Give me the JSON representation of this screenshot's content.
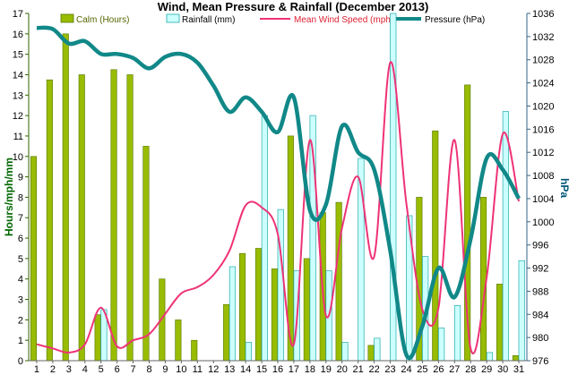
{
  "chart_data": {
    "type": "bar",
    "title": "Wind, Mean Pressure & Rainfall (December 2013)",
    "xlabel": "",
    "ylabel": "Hours/mph/mm",
    "y2label": "hPa",
    "ylim": [
      0,
      17
    ],
    "y2lim": [
      976,
      1036
    ],
    "yticks": [
      "0",
      "1",
      "2",
      "3",
      "4",
      "5",
      "6",
      "7",
      "8",
      "9",
      "10",
      "11",
      "12",
      "13",
      "14",
      "15",
      "16",
      "17"
    ],
    "y2ticks": [
      "976",
      "980",
      "984",
      "988",
      "992",
      "996",
      "1000",
      "1004",
      "1008",
      "1012",
      "1016",
      "1020",
      "1024",
      "1028",
      "1032",
      "1036"
    ],
    "categories": [
      "1",
      "2",
      "3",
      "4",
      "5",
      "6",
      "7",
      "8",
      "9",
      "10",
      "11",
      "12",
      "13",
      "14",
      "15",
      "16",
      "17",
      "18",
      "19",
      "20",
      "21",
      "22",
      "23",
      "24",
      "25",
      "26",
      "27",
      "28",
      "29",
      "30",
      "31"
    ],
    "legend_position": "top",
    "grid": false,
    "series": [
      {
        "name": "Calm (Hours)",
        "kind": "bar",
        "color": "#99bb00",
        "values": [
          10,
          13.75,
          16,
          14,
          2.25,
          14.25,
          14,
          10.5,
          4,
          2,
          1,
          0,
          2.75,
          5.25,
          5.5,
          4.5,
          11,
          5,
          7.25,
          7.75,
          0,
          0.75,
          0,
          0,
          8,
          11.25,
          0,
          13.5,
          8,
          3.75,
          0.25
        ]
      },
      {
        "name": "Rainfall (mm)",
        "kind": "bar",
        "color": "#ccffff",
        "values": [
          0,
          0,
          0,
          0,
          2.5,
          0,
          0,
          0,
          0,
          0,
          0,
          0,
          4.6,
          0.9,
          12,
          7.4,
          4.4,
          12,
          4.4,
          0.9,
          9.9,
          1.1,
          17,
          7.1,
          5.1,
          1.6,
          2.7,
          0,
          0.4,
          12.2,
          4.9
        ]
      },
      {
        "name": "Mean Wind Speed (mph)",
        "kind": "line",
        "color": "#ee3377",
        "values": [
          0.8,
          0.6,
          0.4,
          0.8,
          2.6,
          0.7,
          1,
          1.3,
          2.3,
          3.3,
          3.6,
          4.2,
          5.4,
          7.6,
          7.5,
          6.2,
          0.8,
          10.8,
          2.2,
          6.5,
          9,
          5.1,
          14.6,
          7.7,
          2.5,
          2.6,
          10.8,
          0.6,
          4.1,
          11.1,
          7.8
        ]
      },
      {
        "name": "Pressure (hPa)",
        "kind": "line",
        "axis": "right",
        "color": "#118888",
        "values": [
          1033.5,
          1033.3,
          1030.8,
          1031.2,
          1029,
          1029,
          1028.3,
          1026.5,
          1028.5,
          1029,
          1027.5,
          1023.5,
          1019,
          1021.5,
          1019,
          1015.5,
          1021.5,
          1002,
          1003,
          1016.5,
          1012,
          1009,
          995,
          977,
          982,
          992,
          987,
          997,
          1011,
          1009,
          1004
        ]
      }
    ]
  }
}
